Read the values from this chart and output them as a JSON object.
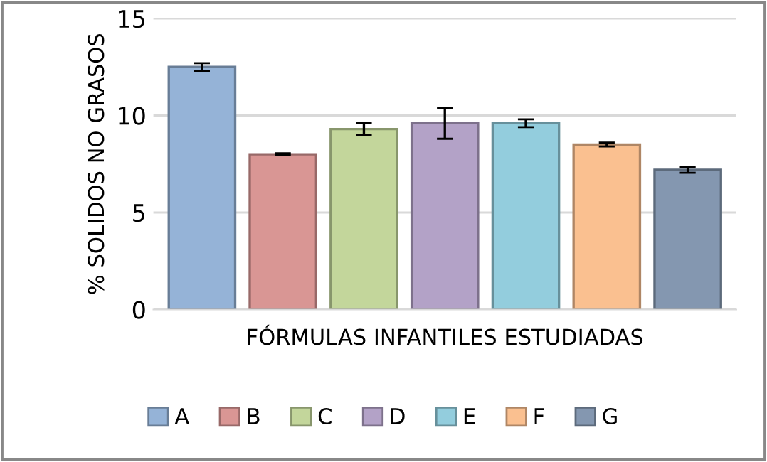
{
  "chart_data": {
    "type": "bar",
    "ylabel": "% SOLIDOS NO GRASOS",
    "xlabel": "FÓRMULAS INFANTILES ESTUDIADAS",
    "categories": [
      null,
      null,
      null,
      null,
      null,
      null,
      null
    ],
    "series": [
      {
        "name": "A",
        "color": "#95b3d7",
        "values": [
          12.5,
          null,
          null,
          null,
          null,
          null,
          null
        ],
        "errors": [
          0.2,
          null,
          null,
          null,
          null,
          null,
          null
        ]
      },
      {
        "name": "B",
        "color": "#d99694",
        "values": [
          null,
          8.0,
          null,
          null,
          null,
          null,
          null
        ],
        "errors": [
          null,
          0.05,
          null,
          null,
          null,
          null,
          null
        ]
      },
      {
        "name": "C",
        "color": "#c3d69b",
        "values": [
          null,
          null,
          9.3,
          null,
          null,
          null,
          null
        ],
        "errors": [
          null,
          null,
          0.3,
          null,
          null,
          null,
          null
        ]
      },
      {
        "name": "D",
        "color": "#b3a2c7",
        "values": [
          null,
          null,
          null,
          9.6,
          null,
          null,
          null
        ],
        "errors": [
          null,
          null,
          null,
          0.8,
          null,
          null,
          null
        ]
      },
      {
        "name": "E",
        "color": "#93cddd",
        "values": [
          null,
          null,
          null,
          null,
          9.6,
          null,
          null
        ],
        "errors": [
          null,
          null,
          null,
          null,
          0.2,
          null,
          null
        ]
      },
      {
        "name": "F",
        "color": "#fac090",
        "values": [
          null,
          null,
          null,
          null,
          null,
          8.5,
          null
        ],
        "errors": [
          null,
          null,
          null,
          null,
          null,
          0.1,
          null
        ]
      },
      {
        "name": "G",
        "color": "#8497b0",
        "values": [
          null,
          null,
          null,
          null,
          null,
          null,
          7.2
        ],
        "errors": [
          null,
          null,
          null,
          null,
          null,
          null,
          0.15
        ]
      }
    ],
    "ylim": [
      0,
      15
    ],
    "yticks": [
      0,
      5,
      10,
      15
    ],
    "grid": "y",
    "legend": "bottom"
  }
}
